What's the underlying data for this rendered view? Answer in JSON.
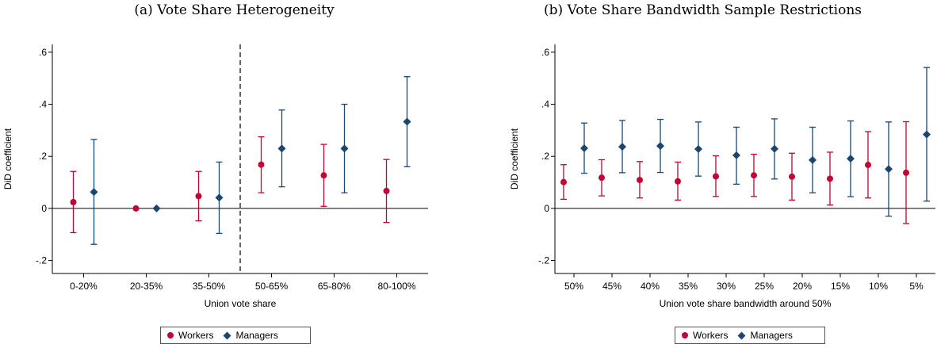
{
  "colors": {
    "workers": "#c10534",
    "managers": "#1a476f",
    "vline": "#000000"
  },
  "chart_data": [
    {
      "type": "scatter",
      "title": "(a) Vote Share Heterogeneity",
      "xlabel": "Union vote share",
      "ylabel": "DiD coefficient",
      "ylim": [
        -0.25,
        0.63
      ],
      "yticks": [
        -0.2,
        0,
        0.2,
        0.4,
        0.6
      ],
      "ytick_labels": [
        "-.2",
        "0",
        ".2",
        ".4",
        ".6"
      ],
      "categories": [
        "0-20%",
        "20-35%",
        "35-50%",
        "50-65%",
        "65-80%",
        "80-100%"
      ],
      "dashed_vline_between": [
        "35-50%",
        "50-65%"
      ],
      "grid": false,
      "legend_position": "bottom-center",
      "series": [
        {
          "name": "Workers",
          "marker": "circle",
          "values": [
            0.024,
            0.0,
            0.047,
            0.168,
            0.127,
            0.067
          ],
          "ci_low": [
            -0.093,
            0.0,
            -0.048,
            0.06,
            0.008,
            -0.054
          ],
          "ci_high": [
            0.142,
            0.0,
            0.142,
            0.275,
            0.246,
            0.188
          ]
        },
        {
          "name": "Managers",
          "marker": "diamond",
          "values": [
            0.063,
            0.0,
            0.041,
            0.23,
            0.23,
            0.333
          ],
          "ci_low": [
            -0.138,
            0.0,
            -0.096,
            0.083,
            0.06,
            0.16
          ],
          "ci_high": [
            0.265,
            0.0,
            0.178,
            0.378,
            0.4,
            0.506
          ]
        }
      ]
    },
    {
      "type": "scatter",
      "title": "(b) Vote Share Bandwidth Sample Restrictions",
      "xlabel": "Union vote share bandwidth around 50%",
      "ylabel": "DiD coefficient",
      "ylim": [
        -0.25,
        0.63
      ],
      "yticks": [
        -0.2,
        0,
        0.2,
        0.4,
        0.6
      ],
      "ytick_labels": [
        "-.2",
        "0",
        ".2",
        ".4",
        ".6"
      ],
      "categories": [
        "50%",
        "45%",
        "40%",
        "35%",
        "30%",
        "25%",
        "20%",
        "15%",
        "10%",
        "5%"
      ],
      "grid": false,
      "legend_position": "bottom-center",
      "series": [
        {
          "name": "Workers",
          "marker": "circle",
          "values": [
            0.101,
            0.118,
            0.109,
            0.104,
            0.123,
            0.127,
            0.122,
            0.114,
            0.167,
            0.137
          ],
          "ci_low": [
            0.035,
            0.048,
            0.04,
            0.032,
            0.046,
            0.046,
            0.032,
            0.013,
            0.04,
            -0.058
          ],
          "ci_high": [
            0.168,
            0.187,
            0.18,
            0.178,
            0.202,
            0.208,
            0.212,
            0.216,
            0.295,
            0.333
          ]
        },
        {
          "name": "Managers",
          "marker": "diamond",
          "values": [
            0.231,
            0.237,
            0.24,
            0.228,
            0.204,
            0.229,
            0.186,
            0.191,
            0.151,
            0.284
          ],
          "ci_low": [
            0.135,
            0.137,
            0.138,
            0.124,
            0.093,
            0.113,
            0.06,
            0.045,
            -0.03,
            0.028
          ],
          "ci_high": [
            0.328,
            0.338,
            0.342,
            0.332,
            0.312,
            0.344,
            0.312,
            0.336,
            0.332,
            0.541
          ]
        }
      ]
    }
  ]
}
